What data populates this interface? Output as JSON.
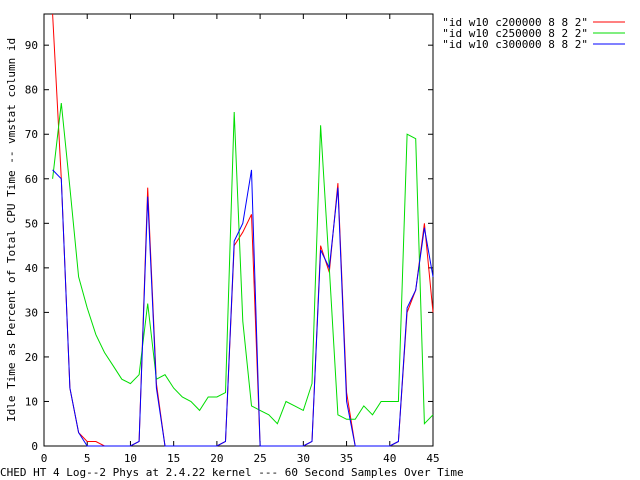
{
  "chart_data": {
    "type": "line",
    "title": "",
    "xlabel": "CHED HT 4 Log--2 Phys at 2.4.22 kernel --- 60 Second Samples Over Time",
    "ylabel": "Idle Time as Percent of Total CPU Time -- vmstat column id",
    "xlim": [
      0,
      45
    ],
    "ylim": [
      0,
      97
    ],
    "x_ticks": [
      0,
      5,
      10,
      15,
      20,
      25,
      30,
      35,
      40,
      45
    ],
    "y_ticks": [
      0,
      10,
      20,
      30,
      40,
      50,
      60,
      70,
      80,
      90
    ],
    "grid": false,
    "legend_position": "top-right",
    "series": [
      {
        "name": "\"id w10 c200000 8 8 2\"",
        "color": "#ff0000",
        "x": [
          1,
          2,
          3,
          4,
          5,
          6,
          7,
          8,
          9,
          10,
          11,
          12,
          13,
          14,
          15,
          16,
          17,
          18,
          19,
          20,
          21,
          22,
          23,
          24,
          25,
          26,
          27,
          28,
          29,
          30,
          31,
          32,
          33,
          34,
          35,
          36,
          37,
          38,
          39,
          40,
          41,
          42,
          43,
          44,
          45
        ],
        "y": [
          97,
          60,
          13,
          3,
          1,
          1,
          0,
          0,
          0,
          0,
          1,
          58,
          14,
          0,
          0,
          0,
          0,
          0,
          0,
          0,
          1,
          45,
          48,
          52,
          0,
          0,
          0,
          0,
          0,
          0,
          1,
          45,
          39,
          59,
          12,
          0,
          0,
          0,
          0,
          0,
          1,
          30,
          35,
          50,
          30
        ]
      },
      {
        "name": "\"id w10 c250000 8 2 2\"",
        "color": "#00dd00",
        "x": [
          1,
          2,
          3,
          4,
          5,
          6,
          7,
          8,
          9,
          10,
          11,
          12,
          13,
          14,
          15,
          16,
          17,
          18,
          19,
          20,
          21,
          22,
          23,
          24,
          25,
          26,
          27,
          28,
          29,
          30,
          31,
          32,
          33,
          34,
          35,
          36,
          37,
          38,
          39,
          40,
          41,
          42,
          43,
          44,
          45
        ],
        "y": [
          60,
          77,
          58,
          38,
          31,
          25,
          21,
          18,
          15,
          14,
          16,
          32,
          15,
          16,
          13,
          11,
          10,
          8,
          11,
          11,
          12,
          75,
          28,
          9,
          8,
          7,
          5,
          10,
          9,
          8,
          14,
          72,
          40,
          7,
          6,
          6,
          9,
          7,
          10,
          10,
          10,
          70,
          69,
          5,
          7
        ]
      },
      {
        "name": "\"id w10 c300000 8 8 2\"",
        "color": "#0000ff",
        "x": [
          1,
          2,
          3,
          4,
          5,
          6,
          7,
          8,
          9,
          10,
          11,
          12,
          13,
          14,
          15,
          16,
          17,
          18,
          19,
          20,
          21,
          22,
          23,
          24,
          25,
          26,
          27,
          28,
          29,
          30,
          31,
          32,
          33,
          34,
          35,
          36,
          37,
          38,
          39,
          40,
          41,
          42,
          43,
          44,
          45
        ],
        "y": [
          62,
          60,
          13,
          3,
          0,
          0,
          0,
          0,
          0,
          0,
          1,
          56,
          13,
          0,
          0,
          0,
          0,
          0,
          0,
          0,
          1,
          46,
          50,
          62,
          0,
          0,
          0,
          0,
          0,
          0,
          1,
          44,
          40,
          58,
          10,
          0,
          0,
          0,
          0,
          0,
          1,
          31,
          35,
          49,
          38
        ]
      }
    ]
  }
}
